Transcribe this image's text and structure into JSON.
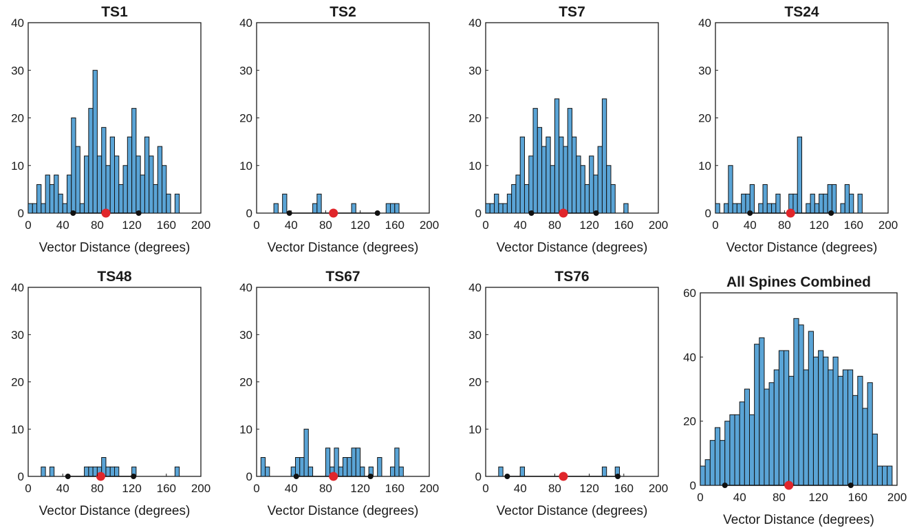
{
  "figure": {
    "colors": {
      "bar_fill": "#5aa4d6",
      "bar_edge": "#111111",
      "mean_marker": "#e0262b",
      "sd_marker": "#111111",
      "sd_line": "#111111"
    }
  },
  "chart_data": [
    {
      "type": "bar",
      "title": "TS1",
      "xlabel": "Vector Distance (degrees)",
      "ylabel": "",
      "xlim": [
        0,
        200
      ],
      "ylim": [
        0,
        40
      ],
      "xticks": [
        0,
        40,
        80,
        120,
        160,
        200
      ],
      "yticks": [
        0,
        10,
        20,
        30,
        40
      ],
      "bin_width": 5,
      "bin_start": 0,
      "counts": [
        2,
        2,
        6,
        2,
        8,
        6,
        8,
        4,
        2,
        8,
        20,
        14,
        2,
        12,
        22,
        30,
        12,
        18,
        10,
        16,
        12,
        6,
        10,
        16,
        22,
        12,
        8,
        16,
        12,
        6,
        14,
        10,
        4,
        0,
        4,
        0,
        0,
        0,
        0,
        0
      ],
      "mean": 90,
      "sd_low": 52,
      "sd_high": 128
    },
    {
      "type": "bar",
      "title": "TS2",
      "xlabel": "Vector Distance (degrees)",
      "ylabel": "",
      "xlim": [
        0,
        200
      ],
      "ylim": [
        0,
        40
      ],
      "xticks": [
        0,
        40,
        80,
        120,
        160,
        200
      ],
      "yticks": [
        0,
        10,
        20,
        30,
        40
      ],
      "bin_width": 5,
      "bin_start": 0,
      "counts": [
        0,
        0,
        0,
        0,
        2,
        0,
        4,
        0,
        0,
        0,
        0,
        0,
        0,
        2,
        4,
        0,
        0,
        0,
        0,
        0,
        0,
        0,
        2,
        0,
        0,
        0,
        0,
        0,
        0,
        0,
        2,
        2,
        2,
        0,
        0,
        0,
        0,
        0,
        0,
        0
      ],
      "mean": 89,
      "sd_low": 38,
      "sd_high": 140
    },
    {
      "type": "bar",
      "title": "TS7",
      "xlabel": "Vector Distance (degrees)",
      "ylabel": "",
      "xlim": [
        0,
        200
      ],
      "ylim": [
        0,
        40
      ],
      "xticks": [
        0,
        40,
        80,
        120,
        160,
        200
      ],
      "yticks": [
        0,
        10,
        20,
        30,
        40
      ],
      "bin_width": 5,
      "bin_start": 0,
      "counts": [
        2,
        2,
        4,
        2,
        2,
        4,
        6,
        8,
        16,
        6,
        12,
        22,
        18,
        14,
        16,
        10,
        24,
        16,
        14,
        22,
        16,
        12,
        10,
        6,
        12,
        8,
        14,
        24,
        10,
        6,
        0,
        0,
        2,
        0,
        0,
        0,
        0,
        0,
        0,
        0
      ],
      "mean": 90,
      "sd_low": 53,
      "sd_high": 128
    },
    {
      "type": "bar",
      "title": "TS24",
      "xlabel": "Vector Distance (degrees)",
      "ylabel": "",
      "xlim": [
        0,
        200
      ],
      "ylim": [
        0,
        40
      ],
      "xticks": [
        0,
        40,
        80,
        120,
        160,
        200
      ],
      "yticks": [
        0,
        10,
        20,
        30,
        40
      ],
      "bin_width": 5,
      "bin_start": 0,
      "counts": [
        2,
        0,
        2,
        10,
        2,
        2,
        4,
        4,
        6,
        0,
        2,
        6,
        2,
        2,
        4,
        0,
        0,
        4,
        4,
        16,
        0,
        2,
        4,
        2,
        4,
        4,
        6,
        6,
        0,
        2,
        6,
        4,
        0,
        4,
        0,
        0,
        0,
        0,
        0,
        0
      ],
      "mean": 87,
      "sd_low": 40,
      "sd_high": 134
    },
    {
      "type": "bar",
      "title": "TS48",
      "xlabel": "Vector Distance (degrees)",
      "ylabel": "",
      "xlim": [
        0,
        200
      ],
      "ylim": [
        0,
        40
      ],
      "xticks": [
        0,
        40,
        80,
        120,
        160,
        200
      ],
      "yticks": [
        0,
        10,
        20,
        30,
        40
      ],
      "bin_width": 5,
      "bin_start": 0,
      "counts": [
        0,
        0,
        0,
        2,
        0,
        2,
        0,
        0,
        0,
        0,
        0,
        0,
        0,
        2,
        2,
        2,
        2,
        4,
        2,
        2,
        2,
        0,
        0,
        0,
        2,
        0,
        0,
        0,
        0,
        0,
        0,
        0,
        0,
        0,
        2,
        0,
        0,
        0,
        0,
        0
      ],
      "mean": 84,
      "sd_low": 46,
      "sd_high": 122
    },
    {
      "type": "bar",
      "title": "TS67",
      "xlabel": "Vector Distance (degrees)",
      "ylabel": "",
      "xlim": [
        0,
        200
      ],
      "ylim": [
        0,
        40
      ],
      "xticks": [
        0,
        40,
        80,
        120,
        160,
        200
      ],
      "yticks": [
        0,
        10,
        20,
        30,
        40
      ],
      "bin_width": 5,
      "bin_start": 0,
      "counts": [
        0,
        4,
        2,
        0,
        0,
        0,
        0,
        0,
        2,
        4,
        4,
        10,
        2,
        0,
        0,
        0,
        6,
        2,
        6,
        2,
        4,
        4,
        6,
        6,
        2,
        0,
        2,
        0,
        4,
        0,
        0,
        2,
        6,
        2,
        0,
        0,
        0,
        0,
        0,
        0
      ],
      "mean": 89,
      "sd_low": 46,
      "sd_high": 132
    },
    {
      "type": "bar",
      "title": "TS76",
      "xlabel": "Vector Distance (degrees)",
      "ylabel": "",
      "xlim": [
        0,
        200
      ],
      "ylim": [
        0,
        40
      ],
      "xticks": [
        0,
        40,
        80,
        120,
        160,
        200
      ],
      "xtick_labels": [
        "0",
        "40",
        "80",
        "120",
        "160",
        "200"
      ],
      "yticks": [
        0,
        10,
        20,
        30,
        40
      ],
      "bin_width": 5,
      "bin_start": 0,
      "counts": [
        0,
        0,
        0,
        2,
        0,
        0,
        0,
        0,
        2,
        0,
        0,
        0,
        0,
        0,
        0,
        0,
        0,
        0,
        0,
        0,
        0,
        0,
        0,
        0,
        0,
        0,
        0,
        2,
        0,
        0,
        2,
        0,
        0,
        0,
        0,
        0,
        0,
        0,
        0,
        0
      ],
      "mean": 90,
      "sd_low": 25,
      "sd_high": 153
    },
    {
      "type": "bar",
      "title": "All Spines Combined",
      "xlabel": "Vector Distance (degrees)",
      "ylabel": "",
      "xlim": [
        0,
        200
      ],
      "ylim": [
        0,
        60
      ],
      "xticks": [
        0,
        40,
        80,
        120,
        160,
        200
      ],
      "yticks": [
        0,
        20,
        40,
        60
      ],
      "bin_width": 5,
      "bin_start": 0,
      "counts": [
        6,
        8,
        14,
        18,
        14,
        20,
        22,
        22,
        26,
        30,
        22,
        44,
        46,
        30,
        32,
        36,
        42,
        42,
        34,
        52,
        50,
        36,
        48,
        40,
        42,
        40,
        36,
        40,
        34,
        36,
        36,
        28,
        34,
        24,
        32,
        16,
        6,
        6,
        6,
        0
      ],
      "mean": 90,
      "sd_low": 25,
      "sd_high": 153
    }
  ]
}
